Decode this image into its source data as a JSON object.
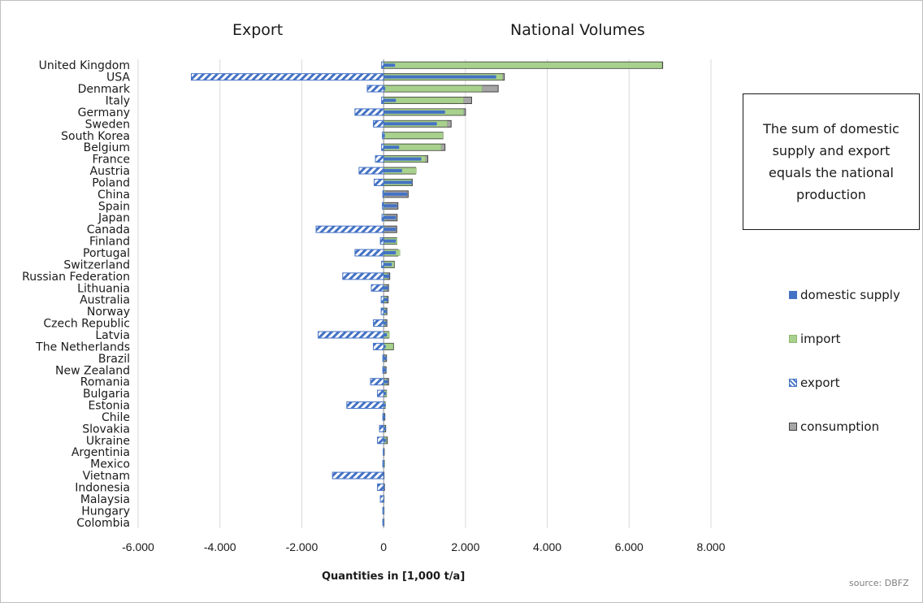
{
  "headings": {
    "export": "Export",
    "national": "National Volumes"
  },
  "note": "The sum of domestic supply and export equals the national production",
  "source": "source: DBFZ",
  "colors": {
    "domestic": "#4472c4",
    "import": "#a9d18e",
    "export": "#4472c4",
    "consumption": "#a6a6a6"
  },
  "chart_data": {
    "type": "bar",
    "orientation": "horizontal",
    "xlabel": "Quantities in [1,000 t/a]",
    "xlim": [
      -6000,
      8000
    ],
    "xticks": [
      -6000,
      -4000,
      -2000,
      0,
      2000,
      4000,
      6000,
      8000
    ],
    "xtick_labels": [
      "-6.000",
      "-4.000",
      "-2.000",
      "0",
      "2.000",
      "4.000",
      "6.000",
      "8.000"
    ],
    "grid": "vertical",
    "legend_position": "right",
    "categories": [
      "United Kingdom",
      "USA",
      "Denmark",
      "Italy",
      "Germany",
      "Sweden",
      "South Korea",
      "Belgium",
      "France",
      "Austria",
      "Poland",
      "China",
      "Spain",
      "Japan",
      "Canada",
      "Finland",
      "Portugal",
      "Switzerland",
      "Russian Federation",
      "Lithuania",
      "Australia",
      "Norway",
      "Czech Republic",
      "Latvia",
      "The Netherlands",
      "Brazil",
      "New Zealand",
      "Romania",
      "Bulgaria",
      "Estonia",
      "Chile",
      "Slovakia",
      "Ukraine",
      "Argentinia",
      "Mexico",
      "Vietnam",
      "Indonesia",
      "Malaysia",
      "Hungary",
      "Colombia"
    ],
    "series": [
      {
        "name": "domestic supply",
        "values": [
          280,
          2750,
          40,
          300,
          1500,
          1300,
          30,
          380,
          920,
          450,
          700,
          580,
          330,
          300,
          300,
          300,
          300,
          200,
          150,
          120,
          110,
          80,
          80,
          80,
          50,
          80,
          70,
          110,
          60,
          50,
          40,
          60,
          60,
          15,
          20,
          10,
          20,
          10,
          10,
          10
        ]
      },
      {
        "name": "import",
        "values": [
          6800,
          2900,
          2400,
          1950,
          1950,
          1550,
          1450,
          1400,
          1020,
          800,
          680,
          40,
          40,
          40,
          20,
          330,
          400,
          250,
          80,
          50,
          60,
          50,
          40,
          140,
          230,
          20,
          15,
          60,
          70,
          40,
          10,
          30,
          70,
          10,
          20,
          0,
          0,
          10,
          10,
          10
        ]
      },
      {
        "name": "export",
        "values": [
          -50,
          -4700,
          -400,
          -50,
          -700,
          -250,
          -30,
          -50,
          -200,
          -600,
          -230,
          -20,
          -30,
          -40,
          -1650,
          -80,
          -700,
          -50,
          -1000,
          -300,
          -60,
          -60,
          -250,
          -1600,
          -250,
          -20,
          -20,
          -320,
          -150,
          -900,
          -20,
          -100,
          -150,
          -10,
          -20,
          -1250,
          -150,
          -80,
          -20,
          -20
        ]
      },
      {
        "name": "consumption",
        "values": [
          6820,
          2950,
          2800,
          2150,
          2000,
          1650,
          1450,
          1500,
          1080,
          780,
          700,
          600,
          350,
          330,
          320,
          320,
          350,
          260,
          150,
          120,
          110,
          80,
          80,
          130,
          240,
          70,
          60,
          120,
          70,
          40,
          30,
          50,
          90,
          15,
          20,
          10,
          20,
          10,
          10,
          10
        ]
      }
    ]
  }
}
